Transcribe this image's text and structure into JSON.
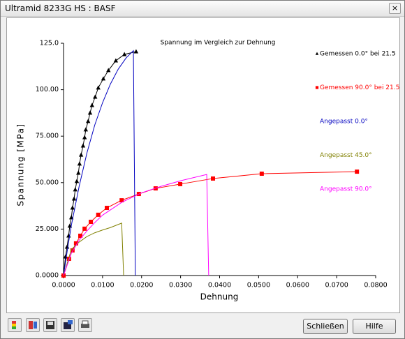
{
  "window": {
    "title": "Ultramid 8233G HS : BASF",
    "close": "×"
  },
  "buttons": {
    "close": "Schließen",
    "help": "Hilfe"
  },
  "chart_data": {
    "type": "line",
    "title": "Spannung im Vergleich zur Dehnung",
    "x_label": "Dehnung",
    "y_label": "Spannung [MPa]",
    "xlim": [
      0,
      0.08
    ],
    "ylim": [
      0,
      125
    ],
    "xticks": [
      {
        "value": 0,
        "label": "0.0000"
      },
      {
        "value": 0.01,
        "label": "0.0100"
      },
      {
        "value": 0.02,
        "label": "0.0200"
      },
      {
        "value": 0.03,
        "label": "0.0300"
      },
      {
        "value": 0.04,
        "label": "0.0400"
      },
      {
        "value": 0.05,
        "label": "0.0500"
      },
      {
        "value": 0.06,
        "label": "0.0600"
      },
      {
        "value": 0.07,
        "label": "0.0700"
      },
      {
        "value": 0.08,
        "label": "0.0800"
      }
    ],
    "yticks": [
      {
        "value": 0,
        "label": "0.0000"
      },
      {
        "value": 25,
        "label": "25.000"
      },
      {
        "value": 50,
        "label": "50.000"
      },
      {
        "value": 75,
        "label": "75.000"
      },
      {
        "value": 100,
        "label": "100.00"
      },
      {
        "value": 125,
        "label": "125.0"
      }
    ],
    "series": [
      {
        "name": "Gemessen 0.0° bei 21.5",
        "color": "#000000",
        "marker": "triangle",
        "x": [
          0,
          0.0005,
          0.0009,
          0.0013,
          0.0016,
          0.002,
          0.0023,
          0.0027,
          0.003,
          0.0034,
          0.0038,
          0.0041,
          0.0045,
          0.005,
          0.0054,
          0.0057,
          0.0063,
          0.0068,
          0.0073,
          0.0081,
          0.0089,
          0.0102,
          0.0115,
          0.0134,
          0.0156,
          0.0186
        ],
        "values": [
          0,
          10.1,
          15.4,
          21.4,
          26.7,
          31.2,
          36.4,
          41.3,
          46.2,
          50.7,
          55.2,
          60.1,
          64.9,
          69.8,
          74.3,
          78.5,
          83,
          87.5,
          91.6,
          96.1,
          101,
          105.9,
          110.4,
          115.6,
          119,
          120.5
        ]
      },
      {
        "name": "Gemessen 90.0° bei 21.5",
        "color": "#ff0000",
        "marker": "square",
        "x": [
          0,
          0.0014,
          0.0023,
          0.0032,
          0.0043,
          0.0054,
          0.007,
          0.0089,
          0.0111,
          0.0149,
          0.0193,
          0.0236,
          0.0299,
          0.0383,
          0.0508,
          0.0752
        ],
        "values": [
          0,
          9,
          13.5,
          17.3,
          21.4,
          25.2,
          28.9,
          32.7,
          36.4,
          40.5,
          43.9,
          46.9,
          49.2,
          52.2,
          54.8,
          55.9
        ]
      },
      {
        "name": "Angepasst 0.0°",
        "color": "#0000c0",
        "marker": null,
        "x": [
          0,
          0.001,
          0.002,
          0.004,
          0.006,
          0.008,
          0.01,
          0.012,
          0.014,
          0.016,
          0.0179,
          0.0184
        ],
        "values": [
          0,
          14,
          27,
          48,
          66,
          81,
          93,
          103,
          111,
          117,
          121,
          0
        ]
      },
      {
        "name": "Angepasst 45.0°",
        "color": "#808000",
        "marker": null,
        "x": [
          0,
          0.002,
          0.004,
          0.006,
          0.008,
          0.01,
          0.012,
          0.0149,
          0.0154
        ],
        "values": [
          0,
          14,
          18,
          21,
          23,
          24.5,
          25.8,
          28.2,
          0
        ]
      },
      {
        "name": "Angepasst 90.0°",
        "color": "#ff00ff",
        "marker": null,
        "x": [
          0,
          0.002,
          0.004,
          0.006,
          0.008,
          0.01,
          0.015,
          0.02,
          0.025,
          0.03,
          0.0367,
          0.0372
        ],
        "values": [
          0,
          12,
          19,
          24,
          28.5,
          32.5,
          39.5,
          44.5,
          48,
          51,
          54.4,
          0
        ]
      }
    ]
  }
}
